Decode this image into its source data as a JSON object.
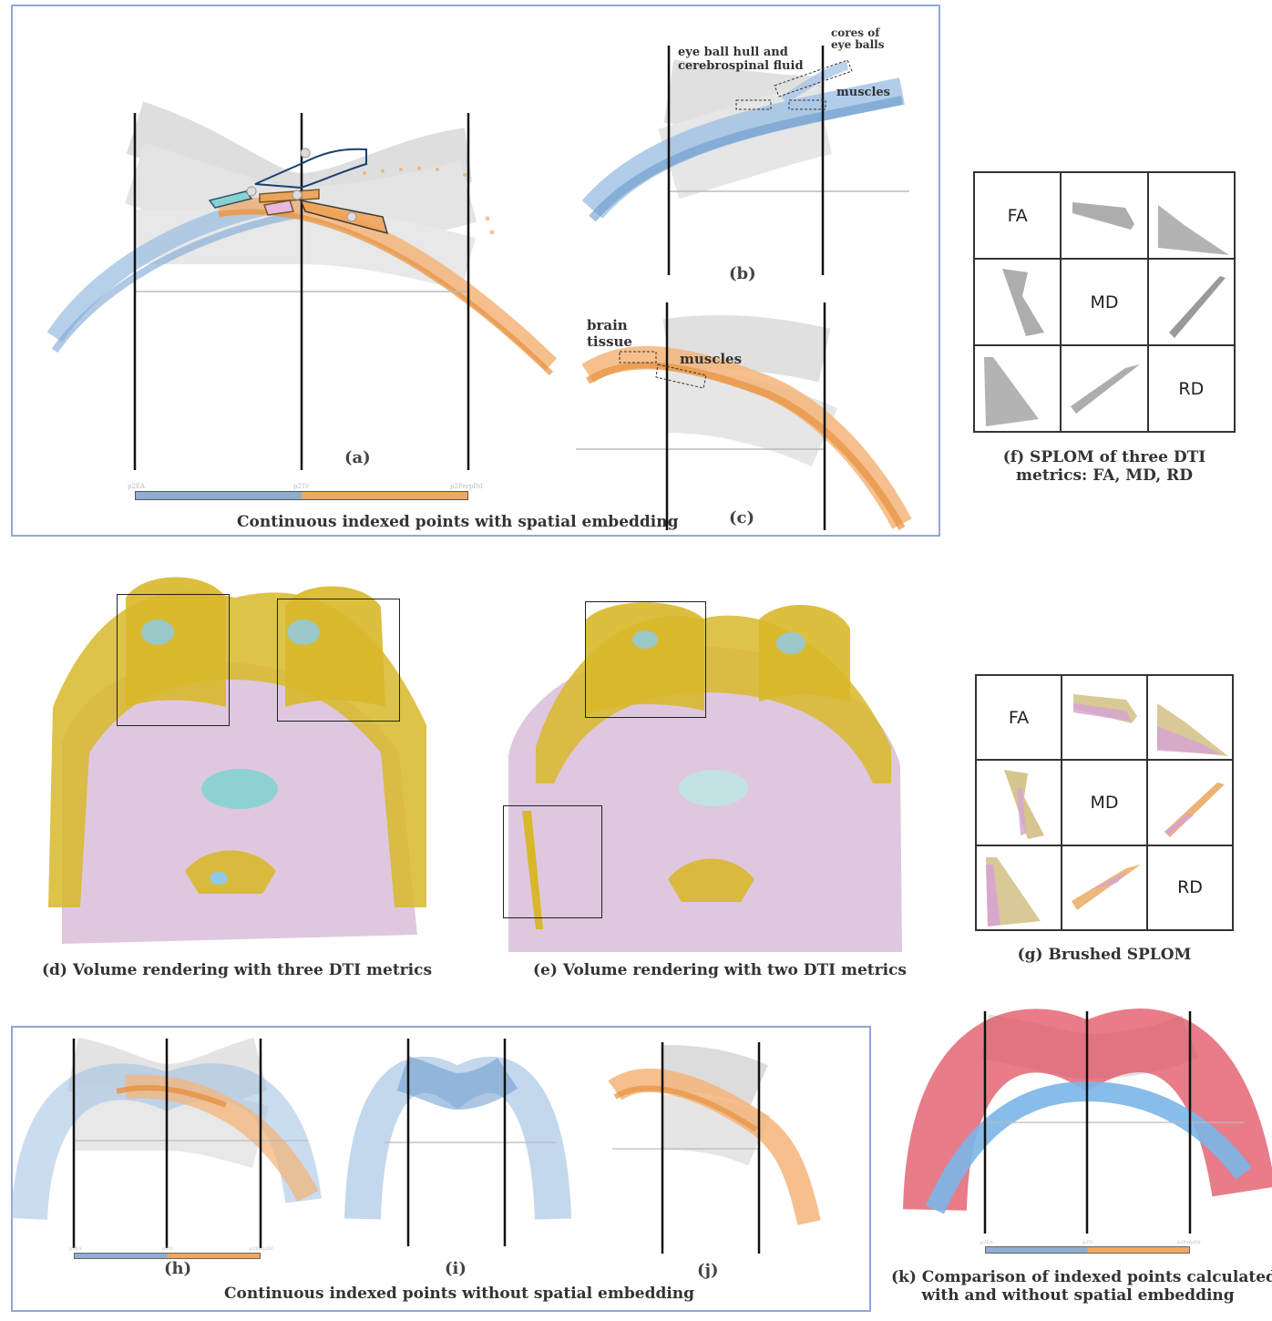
{
  "panel_top": {
    "caption": "Continuous indexed points with spatial embedding",
    "a": {
      "label": "(a)",
      "axis_ticks": [
        "p2EA",
        "p2Tr",
        "p2PerpDif"
      ]
    },
    "b": {
      "label": "(b)",
      "annotations": [
        "eye ball hull and",
        "cerebrospinal fluid",
        "cores of",
        "eye balls",
        "muscles"
      ]
    },
    "c": {
      "label": "(c)",
      "annotations": [
        "brain",
        "tissue",
        "muscles"
      ]
    }
  },
  "panel_f": {
    "caption_line1": "(f) SPLOM of three DTI",
    "caption_line2": "metrics: FA, MD, RD",
    "metrics": [
      "FA",
      "MD",
      "RD"
    ]
  },
  "panel_g": {
    "caption": "(g) Brushed SPLOM",
    "metrics": [
      "FA",
      "MD",
      "RD"
    ]
  },
  "panel_d": {
    "caption": "(d) Volume rendering with three DTI metrics"
  },
  "panel_e": {
    "caption": "(e) Volume rendering with two DTI metrics"
  },
  "panel_bottom": {
    "caption": "Continuous indexed points without spatial embedding",
    "h": {
      "label": "(h)",
      "axis_ticks": [
        "p2EA",
        "p2Tr",
        "p2PerpDif"
      ]
    },
    "i": {
      "label": "(i)"
    },
    "j": {
      "label": "(j)"
    }
  },
  "panel_k": {
    "caption_line1": "(k) Comparison of indexed points calculated",
    "caption_line2": "with and without spatial embedding",
    "axis_ticks": [
      "p2EA",
      "p2Tr",
      "p2PerpDif"
    ]
  },
  "colors": {
    "blue": "#7ba7d6",
    "orange": "#f0a050",
    "gray": "#c8c8c8",
    "yellow": "#d8b82a",
    "pink": "#dcc2dc",
    "cyan": "#7fd3d0",
    "red": "#e05060",
    "box": "#8fa8d8"
  }
}
